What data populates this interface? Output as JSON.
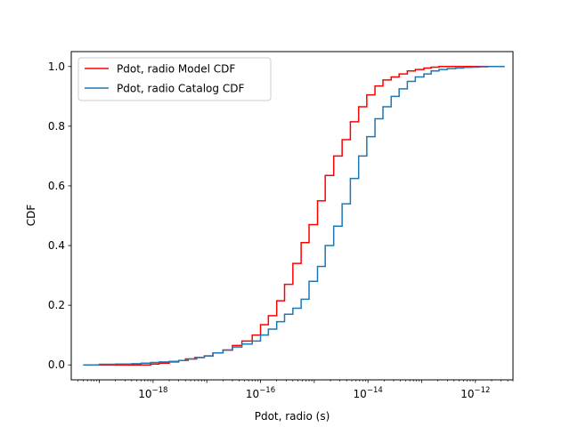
{
  "chart_data": {
    "type": "line",
    "step": true,
    "xscale": "log",
    "xlabel": "Pdot, radio (s)",
    "ylabel": "CDF",
    "xlim": [
      3e-20,
      5e-12
    ],
    "ylim": [
      -0.05,
      1.05
    ],
    "x_ticks": [
      {
        "value": 1e-18,
        "base": "10",
        "exp": "−18"
      },
      {
        "value": 1e-16,
        "base": "10",
        "exp": "−16"
      },
      {
        "value": 1e-14,
        "base": "10",
        "exp": "−14"
      },
      {
        "value": 1e-12,
        "base": "10",
        "exp": "−12"
      }
    ],
    "y_ticks": [
      {
        "value": 0.0,
        "label": "0.0"
      },
      {
        "value": 0.2,
        "label": "0.2"
      },
      {
        "value": 0.4,
        "label": "0.4"
      },
      {
        "value": 0.6,
        "label": "0.6"
      },
      {
        "value": 0.8,
        "label": "0.8"
      },
      {
        "value": 1.0,
        "label": "1.0"
      }
    ],
    "grid": false,
    "legend": "upper-left",
    "series": [
      {
        "name": "Pdot, radio Model CDF",
        "color": "#ff0000",
        "x": [
          5e-20,
          1e-19,
          2e-19,
          6e-19,
          9e-19,
          1.3e-18,
          2e-18,
          3e-18,
          4e-18,
          6e-18,
          9e-18,
          1.3e-17,
          2e-17,
          3e-17,
          4.5e-17,
          7e-17,
          1e-16,
          1.4e-16,
          2e-16,
          2.8e-16,
          4e-16,
          5.7e-16,
          8e-16,
          1.15e-15,
          1.6e-15,
          2.3e-15,
          3.3e-15,
          4.7e-15,
          6.7e-15,
          9.5e-15,
          1.35e-14,
          1.9e-14,
          2.7e-14,
          3.8e-14,
          5.4e-14,
          7.6e-14,
          1.1e-13,
          1.5e-13,
          2.1e-13,
          3e-13,
          4.3e-13,
          6e-13,
          8.6e-13,
          1.2e-12,
          1.7e-12,
          2.4e-12,
          3.5e-12
        ],
        "y": [
          0.0,
          0.0,
          0.0,
          0.0,
          0.003,
          0.006,
          0.01,
          0.015,
          0.02,
          0.025,
          0.03,
          0.04,
          0.05,
          0.065,
          0.08,
          0.1,
          0.135,
          0.165,
          0.215,
          0.27,
          0.34,
          0.41,
          0.47,
          0.55,
          0.635,
          0.7,
          0.755,
          0.815,
          0.865,
          0.905,
          0.935,
          0.955,
          0.965,
          0.975,
          0.985,
          0.99,
          0.995,
          0.998,
          1.0,
          1.0,
          1.0,
          1.0,
          1.0,
          1.0,
          1.0,
          1.0,
          1.0
        ]
      },
      {
        "name": "Pdot, radio Catalog CDF",
        "color": "#1f77b4",
        "x": [
          5e-20,
          1e-19,
          2e-19,
          4e-19,
          6e-19,
          9e-19,
          1.3e-18,
          2e-18,
          3e-18,
          4.5e-18,
          6.5e-18,
          9e-18,
          1.3e-17,
          2e-17,
          3e-17,
          4.5e-17,
          7e-17,
          1e-16,
          1.4e-16,
          2e-16,
          2.8e-16,
          4e-16,
          5.7e-16,
          8e-16,
          1.15e-15,
          1.6e-15,
          2.3e-15,
          3.3e-15,
          4.7e-15,
          6.7e-15,
          9.5e-15,
          1.35e-14,
          1.9e-14,
          2.7e-14,
          3.8e-14,
          5.4e-14,
          7.6e-14,
          1.1e-13,
          1.5e-13,
          2.1e-13,
          3e-13,
          4.3e-13,
          6e-13,
          8.6e-13,
          1.2e-12,
          1.7e-12,
          2.4e-12,
          3.5e-12
        ],
        "y": [
          0.0,
          0.002,
          0.003,
          0.004,
          0.006,
          0.008,
          0.01,
          0.012,
          0.015,
          0.02,
          0.025,
          0.03,
          0.04,
          0.05,
          0.06,
          0.07,
          0.08,
          0.1,
          0.12,
          0.145,
          0.17,
          0.19,
          0.22,
          0.28,
          0.33,
          0.4,
          0.465,
          0.54,
          0.625,
          0.7,
          0.765,
          0.825,
          0.865,
          0.9,
          0.925,
          0.95,
          0.965,
          0.975,
          0.985,
          0.99,
          0.993,
          0.995,
          0.997,
          0.998,
          0.999,
          1.0,
          1.0,
          1.0
        ]
      }
    ]
  }
}
